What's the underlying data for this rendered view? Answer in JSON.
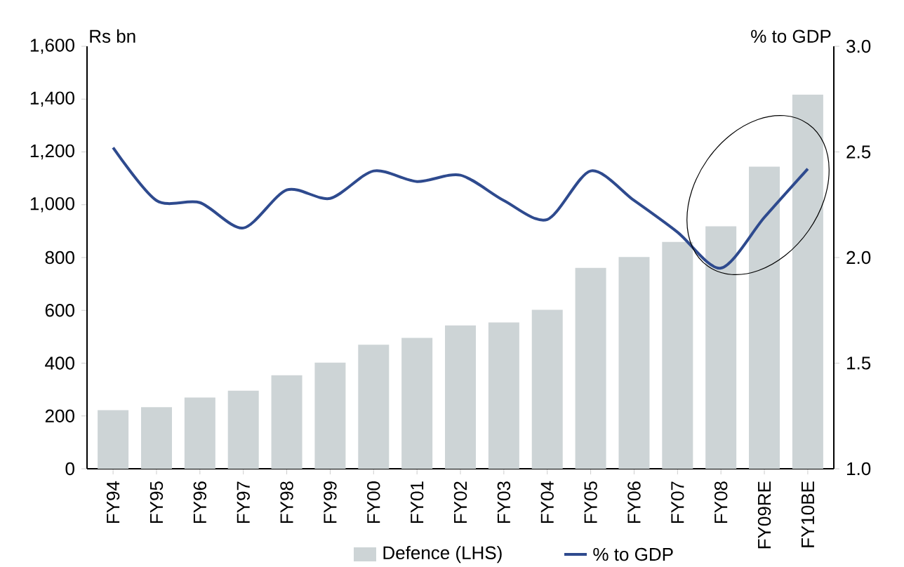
{
  "chart_data": {
    "type": "bar",
    "ylabel": "Rs bn",
    "y2label": "% to GDP",
    "categories": [
      "FY94",
      "FY95",
      "FY96",
      "FY97",
      "FY98",
      "FY99",
      "FY00",
      "FY01",
      "FY02",
      "FY03",
      "FY04",
      "FY05",
      "FY06",
      "FY07",
      "FY08",
      "FY09RE",
      "FY10BE"
    ],
    "series": [
      {
        "name": "Defence (LHS)",
        "color": "#cdd4d6",
        "values": [
          222,
          233,
          270,
          296,
          354,
          402,
          470,
          496,
          543,
          554,
          602,
          761,
          802,
          859,
          918,
          1144,
          1417
        ]
      },
      {
        "name": "% to GDP",
        "type": "line",
        "axis": "y2",
        "color": "#2e4a8e",
        "values": [
          2.52,
          2.27,
          2.26,
          2.14,
          2.32,
          2.28,
          2.41,
          2.36,
          2.39,
          2.27,
          2.18,
          2.41,
          2.27,
          2.12,
          1.95,
          2.19,
          2.42
        ]
      }
    ],
    "ylim": [
      0,
      1600
    ],
    "yticks": [
      {
        "value": 0,
        "label": "0"
      },
      {
        "value": 200,
        "label": "200"
      },
      {
        "value": 400,
        "label": "400"
      },
      {
        "value": 600,
        "label": "600"
      },
      {
        "value": 800,
        "label": "800"
      },
      {
        "value": 1000,
        "label": "1,000"
      },
      {
        "value": 1200,
        "label": "1,200"
      },
      {
        "value": 1400,
        "label": "1,400"
      },
      {
        "value": 1600,
        "label": "1,600"
      }
    ],
    "y2lim": [
      1.0,
      3.0
    ],
    "y2ticks": [
      {
        "value": 1.0,
        "label": "1.0"
      },
      {
        "value": 1.5,
        "label": "1.5"
      },
      {
        "value": 2.0,
        "label": "2.0"
      },
      {
        "value": 2.5,
        "label": "2.5"
      },
      {
        "value": 3.0,
        "label": "3.0"
      }
    ],
    "legend": "bottom"
  }
}
